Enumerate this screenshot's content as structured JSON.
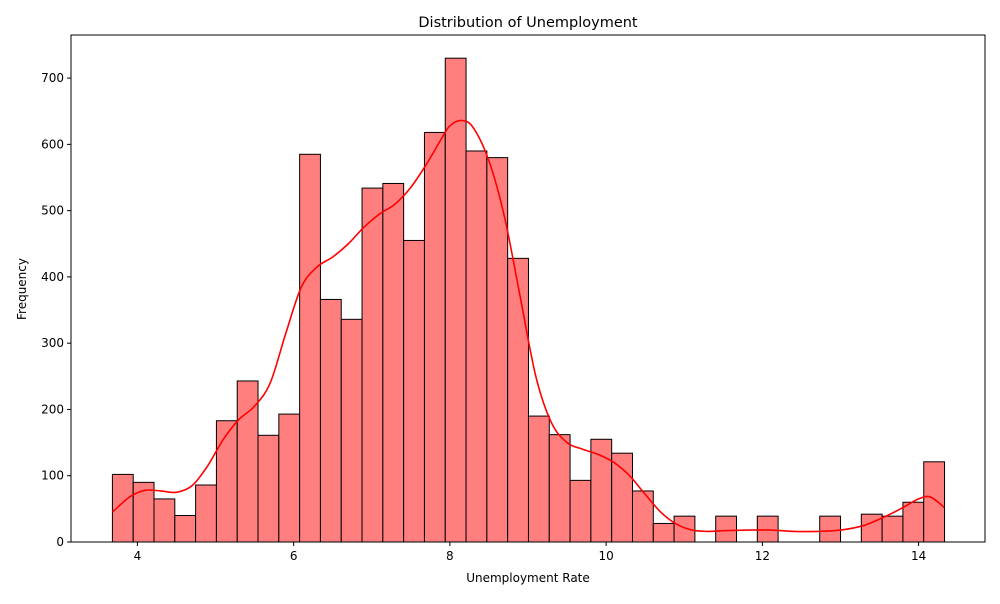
{
  "chart_data": {
    "type": "histogram",
    "title": "Distribution of Unemployment",
    "xlabel": "Unemployment Rate",
    "ylabel": "Frequency",
    "xlim": [
      3.15,
      14.85
    ],
    "ylim": [
      0,
      765
    ],
    "xticks": [
      4,
      6,
      8,
      10,
      12,
      14
    ],
    "yticks": [
      0,
      100,
      200,
      300,
      400,
      500,
      600,
      700
    ],
    "bar_color": "#ff7f7f",
    "bar_edge_color": "#000000",
    "kde_color": "#ff0000",
    "bin_start": 3.68,
    "bin_width": 0.2663,
    "frequencies": [
      102,
      90,
      65,
      40,
      86,
      183,
      243,
      161,
      193,
      585,
      366,
      336,
      534,
      541,
      455,
      618,
      730,
      590,
      580,
      428,
      190,
      162,
      93,
      155,
      134,
      77,
      28,
      39,
      0,
      39,
      0,
      39,
      0,
      0,
      39,
      0,
      42,
      39,
      60,
      121
    ],
    "kde": {
      "x": [
        3.68,
        3.9,
        4.1,
        4.3,
        4.5,
        4.7,
        4.9,
        5.1,
        5.3,
        5.5,
        5.7,
        5.9,
        6.1,
        6.3,
        6.5,
        6.7,
        6.9,
        7.1,
        7.3,
        7.5,
        7.7,
        7.9,
        8.0,
        8.15,
        8.3,
        8.5,
        8.7,
        8.9,
        9.1,
        9.3,
        9.5,
        9.7,
        9.9,
        10.1,
        10.3,
        10.5,
        10.7,
        10.9,
        11.1,
        11.3,
        11.5,
        11.8,
        12.1,
        12.4,
        12.7,
        13.0,
        13.3,
        13.6,
        13.8,
        14.0,
        14.15,
        14.33
      ],
      "y": [
        45,
        68,
        78,
        77,
        75,
        85,
        115,
        155,
        185,
        205,
        240,
        315,
        385,
        415,
        430,
        450,
        475,
        495,
        510,
        535,
        570,
        610,
        628,
        636,
        625,
        575,
        490,
        370,
        250,
        180,
        150,
        140,
        132,
        120,
        100,
        72,
        45,
        27,
        18,
        16,
        17,
        18,
        18,
        16,
        16,
        18,
        25,
        40,
        52,
        65,
        68,
        52
      ]
    }
  }
}
